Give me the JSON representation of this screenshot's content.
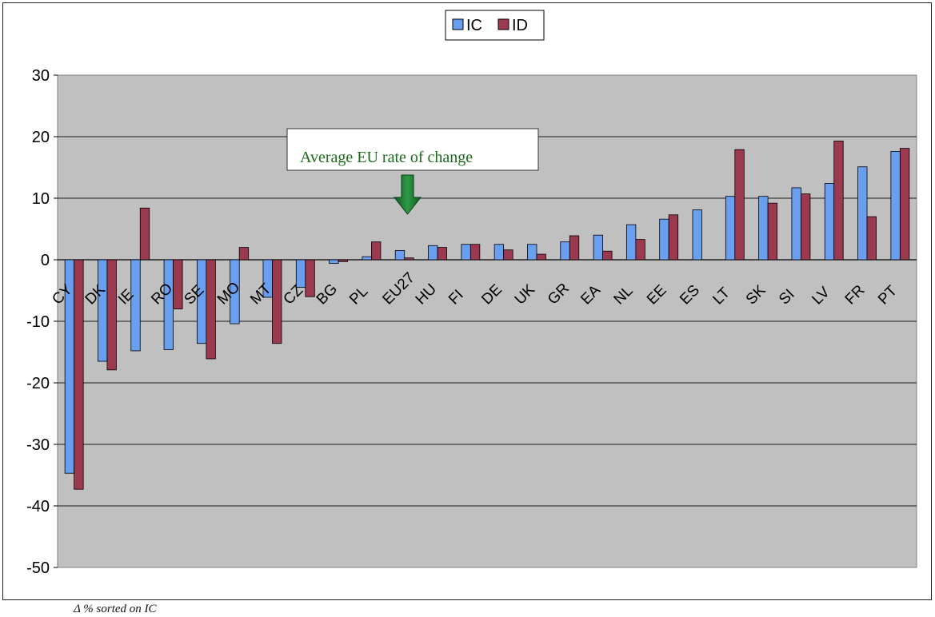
{
  "footnote": "Δ % sorted on IC",
  "chart_data": {
    "type": "bar",
    "categories": [
      "CY",
      "DK",
      "IE",
      "RO",
      "SE",
      "MO",
      "MT",
      "CZ",
      "BG",
      "PL",
      "EU27",
      "HU",
      "FI",
      "DE",
      "UK",
      "GR",
      "EA",
      "NL",
      "EE",
      "ES",
      "LT",
      "SK",
      "SI",
      "LV",
      "FR",
      "PT"
    ],
    "series": [
      {
        "name": "IC",
        "color": "#6a9ff0",
        "values": [
          -34.7,
          -16.5,
          -14.8,
          -14.6,
          -13.6,
          -10.4,
          -6.1,
          -4.5,
          -0.6,
          0.5,
          1.5,
          2.3,
          2.5,
          2.5,
          2.5,
          2.9,
          4.0,
          5.7,
          6.6,
          8.1,
          10.3,
          10.3,
          11.7,
          12.4,
          15.1,
          17.6
        ]
      },
      {
        "name": "ID",
        "color": "#9b3a4f",
        "values": [
          -37.3,
          -17.9,
          8.4,
          -8.0,
          -16.1,
          2.0,
          -13.6,
          -6.0,
          -0.3,
          2.9,
          0.3,
          2.0,
          2.5,
          1.6,
          0.9,
          3.9,
          1.4,
          3.3,
          7.3,
          0.0,
          17.9,
          9.2,
          10.7,
          19.3,
          7.0,
          18.1
        ]
      }
    ],
    "ylim": [
      -50,
      30
    ],
    "yticks": [
      30,
      20,
      10,
      0,
      -10,
      -20,
      -30,
      -40,
      -50
    ],
    "grid": true,
    "legend_position": "top-center",
    "annotation": "Average EU rate of change",
    "plot_background": "#c0c0c0",
    "xlabel": "",
    "ylabel": ""
  }
}
